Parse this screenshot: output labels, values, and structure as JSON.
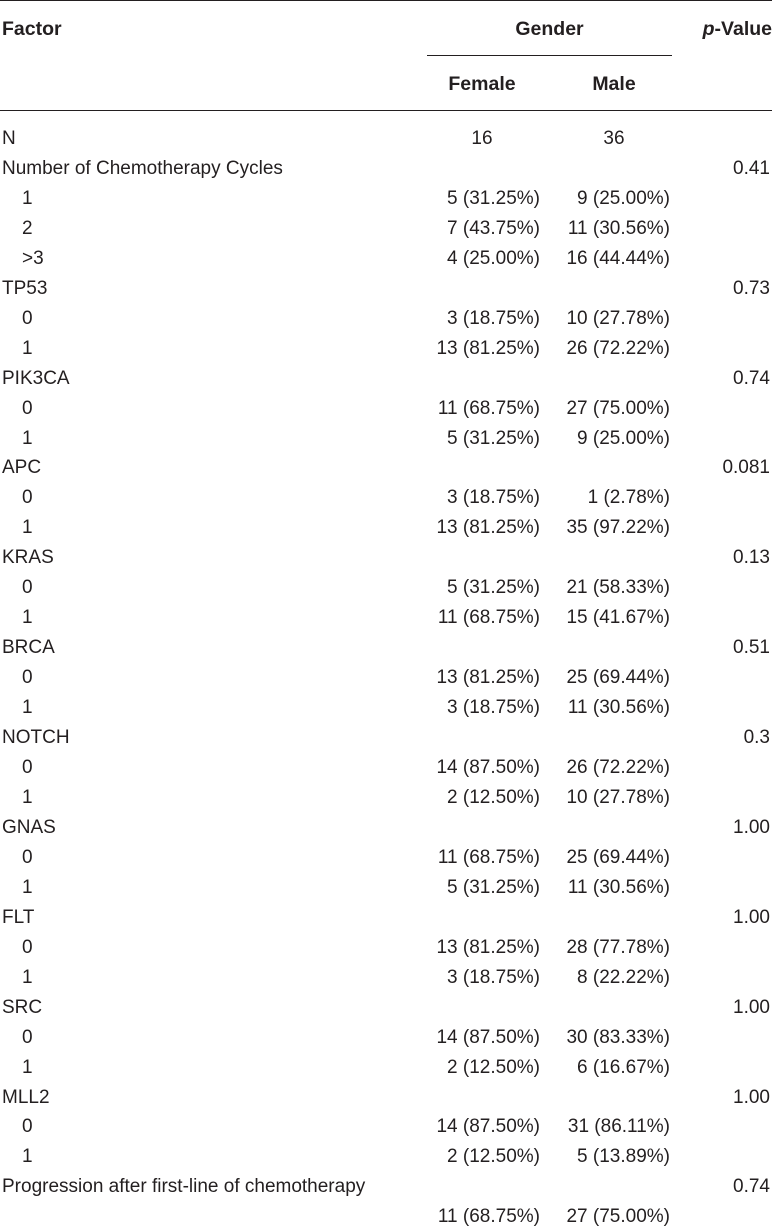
{
  "table": {
    "header": {
      "factor": "Factor",
      "gender": "Gender",
      "p_italic": "p",
      "p_rest": "-Value",
      "female": "Female",
      "male": "Male"
    },
    "rows": [
      {
        "kind": "n",
        "label": "N",
        "female": "16",
        "male": "36",
        "p": ""
      },
      {
        "kind": "group",
        "label": "Number of Chemotherapy Cycles",
        "female": "",
        "male": "",
        "p": "0.41"
      },
      {
        "kind": "sub",
        "label": "1",
        "female": "5 (31.25%)",
        "male": "9 (25.00%)",
        "p": ""
      },
      {
        "kind": "sub",
        "label": "2",
        "female": "7 (43.75%)",
        "male": "11 (30.56%)",
        "p": ""
      },
      {
        "kind": "sub",
        "label": ">3",
        "female": "4 (25.00%)",
        "male": "16 (44.44%)",
        "p": ""
      },
      {
        "kind": "group",
        "label": "TP53",
        "female": "",
        "male": "",
        "p": "0.73"
      },
      {
        "kind": "sub",
        "label": "0",
        "female": "3 (18.75%)",
        "male": "10 (27.78%)",
        "p": ""
      },
      {
        "kind": "sub",
        "label": "1",
        "female": "13 (81.25%)",
        "male": "26 (72.22%)",
        "p": ""
      },
      {
        "kind": "group",
        "label": "PIK3CA",
        "female": "",
        "male": "",
        "p": "0.74"
      },
      {
        "kind": "sub",
        "label": "0",
        "female": "11 (68.75%)",
        "male": "27 (75.00%)",
        "p": ""
      },
      {
        "kind": "sub",
        "label": "1",
        "female": "5 (31.25%)",
        "male": "9 (25.00%)",
        "p": ""
      },
      {
        "kind": "group",
        "label": "APC",
        "female": "",
        "male": "",
        "p": "0.081"
      },
      {
        "kind": "sub",
        "label": "0",
        "female": "3 (18.75%)",
        "male": "1 (2.78%)",
        "p": ""
      },
      {
        "kind": "sub",
        "label": "1",
        "female": "13 (81.25%)",
        "male": "35 (97.22%)",
        "p": ""
      },
      {
        "kind": "group",
        "label": "KRAS",
        "female": "",
        "male": "",
        "p": "0.13"
      },
      {
        "kind": "sub",
        "label": "0",
        "female": "5 (31.25%)",
        "male": "21 (58.33%)",
        "p": ""
      },
      {
        "kind": "sub",
        "label": "1",
        "female": "11 (68.75%)",
        "male": "15 (41.67%)",
        "p": ""
      },
      {
        "kind": "group",
        "label": "BRCA",
        "female": "",
        "male": "",
        "p": "0.51"
      },
      {
        "kind": "sub",
        "label": "0",
        "female": "13 (81.25%)",
        "male": "25 (69.44%)",
        "p": ""
      },
      {
        "kind": "sub",
        "label": "1",
        "female": "3 (18.75%)",
        "male": "11 (30.56%)",
        "p": ""
      },
      {
        "kind": "group",
        "label": "NOTCH",
        "female": "",
        "male": "",
        "p": "0.3"
      },
      {
        "kind": "sub",
        "label": "0",
        "female": "14 (87.50%)",
        "male": "26 (72.22%)",
        "p": ""
      },
      {
        "kind": "sub",
        "label": "1",
        "female": "2 (12.50%)",
        "male": "10 (27.78%)",
        "p": ""
      },
      {
        "kind": "group",
        "label": "GNAS",
        "female": "",
        "male": "",
        "p": "1.00"
      },
      {
        "kind": "sub",
        "label": "0",
        "female": "11 (68.75%)",
        "male": "25 (69.44%)",
        "p": ""
      },
      {
        "kind": "sub",
        "label": "1",
        "female": "5 (31.25%)",
        "male": "11 (30.56%)",
        "p": ""
      },
      {
        "kind": "group",
        "label": "FLT",
        "female": "",
        "male": "",
        "p": "1.00"
      },
      {
        "kind": "sub",
        "label": "0",
        "female": "13 (81.25%)",
        "male": "28 (77.78%)",
        "p": ""
      },
      {
        "kind": "sub",
        "label": "1",
        "female": "3 (18.75%)",
        "male": "8 (22.22%)",
        "p": ""
      },
      {
        "kind": "group",
        "label": "SRC",
        "female": "",
        "male": "",
        "p": "1.00"
      },
      {
        "kind": "sub",
        "label": "0",
        "female": "14 (87.50%)",
        "male": "30 (83.33%)",
        "p": ""
      },
      {
        "kind": "sub",
        "label": "1",
        "female": "2 (12.50%)",
        "male": "6 (16.67%)",
        "p": ""
      },
      {
        "kind": "group",
        "label": "MLL2",
        "female": "",
        "male": "",
        "p": "1.00"
      },
      {
        "kind": "sub",
        "label": "0",
        "female": "14 (87.50%)",
        "male": "31 (86.11%)",
        "p": ""
      },
      {
        "kind": "sub",
        "label": "1",
        "female": "2 (12.50%)",
        "male": "5 (13.89%)",
        "p": ""
      },
      {
        "kind": "group",
        "label": "Progression after first-line of chemotherapy",
        "female": "",
        "male": "",
        "p": "0.74"
      },
      {
        "kind": "sub",
        "label": "",
        "female": "11 (68.75%)",
        "male": "27 (75.00%)",
        "p": ""
      }
    ]
  }
}
